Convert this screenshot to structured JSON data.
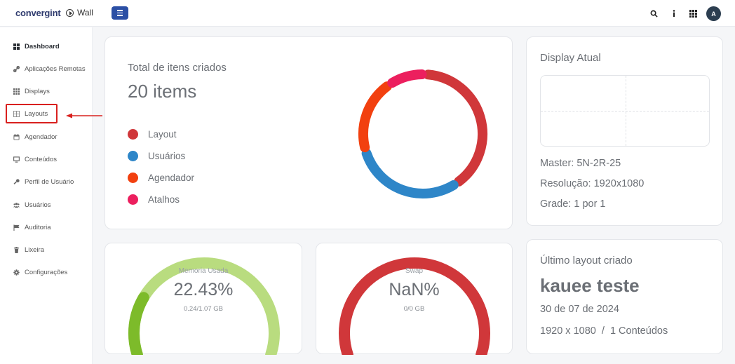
{
  "header": {
    "brand": "convergint",
    "app_name": "Wall",
    "avatar_initial": "A",
    "icons": [
      "search-icon",
      "info-icon",
      "apps-grid-icon"
    ]
  },
  "sidebar": {
    "items": [
      {
        "label": "Dashboard",
        "icon": "dashboard-icon",
        "active": true
      },
      {
        "label": "Aplicações Remotas",
        "icon": "link-icon"
      },
      {
        "label": "Displays",
        "icon": "grid-icon"
      },
      {
        "label": "Layouts",
        "icon": "layout-icon"
      },
      {
        "label": "Agendador",
        "icon": "calendar-icon"
      },
      {
        "label": "Conteúdos",
        "icon": "monitor-icon"
      },
      {
        "label": "Perfil de Usuário",
        "icon": "wrench-icon"
      },
      {
        "label": "Usuários",
        "icon": "users-icon"
      },
      {
        "label": "Auditoria",
        "icon": "flag-icon"
      },
      {
        "label": "Lixeira",
        "icon": "trash-icon"
      },
      {
        "label": "Configurações",
        "icon": "gear-icon"
      }
    ]
  },
  "total": {
    "title": "Total de itens criados",
    "value": "20 items",
    "legend": [
      {
        "label": "Layout",
        "color": "#d0373a"
      },
      {
        "label": "Usuários",
        "color": "#2e86c8"
      },
      {
        "label": "Agendador",
        "color": "#f2400f"
      },
      {
        "label": "Atalhos",
        "color": "#ec1f5e"
      }
    ],
    "chart_data": {
      "type": "pie",
      "categories": [
        "Layout",
        "Usuários",
        "Agendador",
        "Atalhos"
      ],
      "values": [
        8,
        6,
        4,
        2
      ],
      "colors": [
        "#d0373a",
        "#2e86c8",
        "#f2400f",
        "#ec1f5e"
      ]
    }
  },
  "display": {
    "title": "Display Atual",
    "master": "Master: 5N-2R-25",
    "resolution": "Resolução: 1920x1080",
    "grid": "Grade: 1 por 1"
  },
  "memory": {
    "label": "Memoria Usada",
    "value": "22.43%",
    "percent": 22.43,
    "sub": "0.24/1.07 GB",
    "color_fill": "#7dbb2a",
    "color_track": "#b9dc7f"
  },
  "swap": {
    "label": "Swap",
    "value": "NaN%",
    "sub": "0/0 GB",
    "color_track": "#d0373a"
  },
  "last_layout": {
    "title": "Último layout criado",
    "name": "kauee teste",
    "date": "30 de 07 de 2024",
    "details": "1920 x 1080  /  1 Conteúdos"
  }
}
